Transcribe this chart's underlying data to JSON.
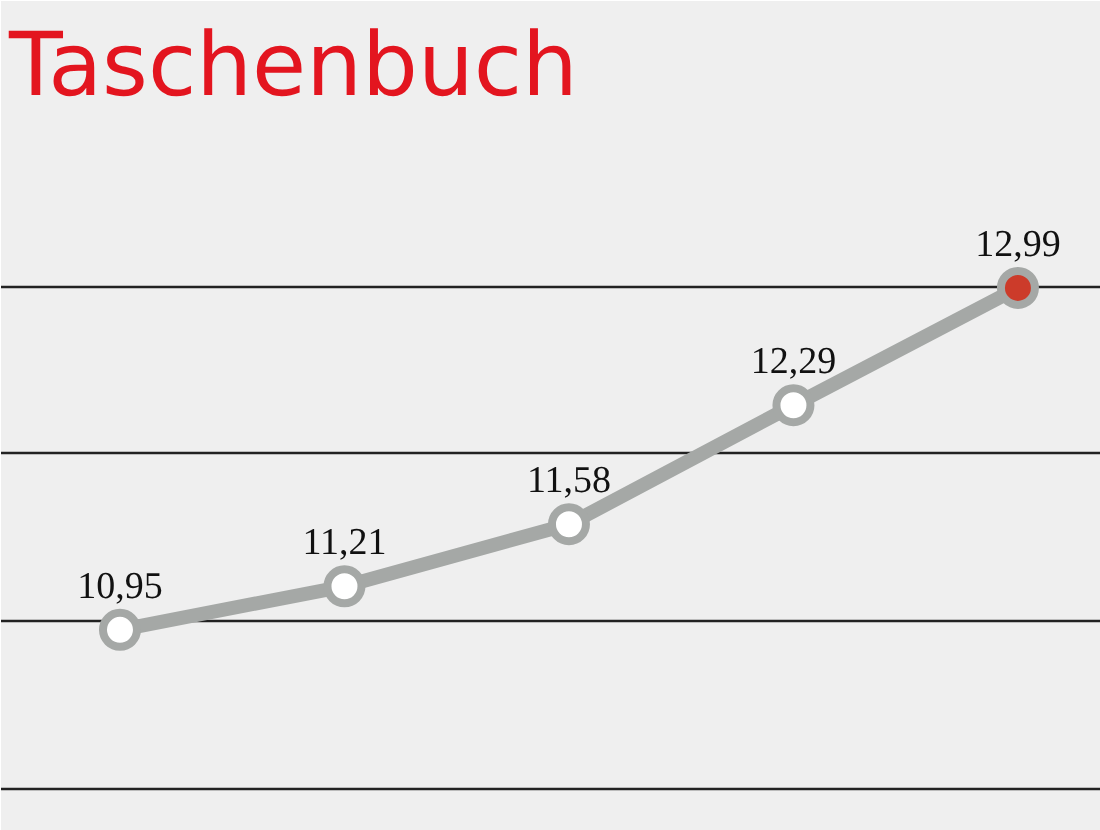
{
  "chart_data": {
    "type": "line",
    "title": "Taschenbuch",
    "categories": [
      null,
      null,
      null,
      null,
      null
    ],
    "series": [
      {
        "color": "#a5a8a6",
        "colors": [
          "#ffffff",
          "#ffffff",
          "#ffffff",
          "#ffffff",
          "#cc3b2a"
        ],
        "values": [
          10.95,
          11.21,
          11.58,
          12.29,
          12.99
        ],
        "value_labels": [
          "10,95",
          "11,21",
          "11,58",
          "12,29",
          "12,99"
        ]
      }
    ],
    "ylim": [
      9.75,
      13.95
    ],
    "yticks": [
      {
        "value": 10,
        "label": null
      },
      {
        "value": 11,
        "label": null
      },
      {
        "value": 12,
        "label": null
      },
      {
        "value": 13,
        "label": null
      }
    ],
    "grid": "y",
    "tick_labels": false,
    "marker": "circle",
    "line_style": "solid"
  }
}
